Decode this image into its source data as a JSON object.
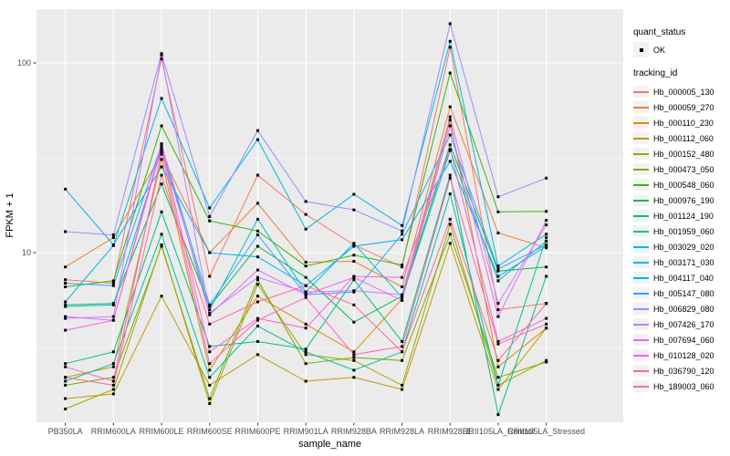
{
  "figure": {
    "x_axis_title": "sample_name",
    "y_axis_title": "FPKM + 1"
  },
  "legend": {
    "quant_status_title": "quant_status",
    "ok_label": "OK",
    "tracking_id_title": "tracking_id"
  },
  "colors": {
    "panel_background": "#EBEBEB",
    "gridline": "#FFFFFF",
    "axis_text": "#4D4D4D",
    "tick_mark": "#333333",
    "point": "#000000",
    "legend_key_background": "#F2F2F2"
  },
  "chart_data": {
    "type": "line",
    "title": "",
    "xlabel": "sample_name",
    "ylabel": "FPKM + 1",
    "y_scale": "log10",
    "ylim": [
      1.27,
      192
    ],
    "y_ticks": [
      {
        "value": 100,
        "label": "100"
      },
      {
        "value": 10,
        "label": "10"
      }
    ],
    "y_minor_ticks": [
      31.62,
      3.162
    ],
    "grid": true,
    "legend_position": "right",
    "point_marker": "black square (quant_status OK)",
    "categories": [
      "PB350LA",
      "RRIM600LA",
      "RRIM600LE",
      "RRIM600SE",
      "RRIM600PE",
      "RRIM901LA",
      "RRIM928BA",
      "RRIM928LA",
      "RRIM928LE",
      "RRII105LA_Control",
      "RRII105LA_Stressed"
    ],
    "series": [
      {
        "name": "Hb_000005_130",
        "color": "#F8766D",
        "values": [
          7.2,
          6.9,
          105,
          7.5,
          25.6,
          15.9,
          11,
          8.4,
          121,
          5,
          5.4
        ]
      },
      {
        "name": "Hb_000059_270",
        "color": "#EA8331",
        "values": [
          8.4,
          12,
          33,
          10,
          18.2,
          8.9,
          9,
          6.6,
          58.7,
          12.7,
          10.6
        ]
      },
      {
        "name": "Hb_000110_230",
        "color": "#D89000",
        "values": [
          2.2,
          2.5,
          31,
          2.4,
          5.9,
          4.2,
          3,
          5.7,
          50,
          2.5,
          4
        ]
      },
      {
        "name": "Hb_000112_060",
        "color": "#C09B00",
        "values": [
          1.7,
          1.8,
          5.9,
          2,
          2.9,
          2.1,
          2.2,
          1.9,
          11.2,
          1.9,
          4
        ]
      },
      {
        "name": "Hb_000152_480",
        "color": "#A3A500",
        "values": [
          1.5,
          1.9,
          11,
          1.6,
          6.8,
          2.9,
          2.7,
          2,
          14.1,
          2,
          2.7
        ]
      },
      {
        "name": "Hb_000473_050",
        "color": "#7CAE00",
        "values": [
          2,
          2.2,
          10.8,
          1.7,
          7.2,
          2.6,
          2.8,
          2.7,
          12.5,
          2.2,
          2.65
        ]
      },
      {
        "name": "Hb_000548_060",
        "color": "#39B600",
        "values": [
          6.6,
          7.1,
          46.6,
          14.7,
          13,
          8.5,
          9.7,
          8.6,
          88.5,
          16.4,
          16.5
        ]
      },
      {
        "name": "Hb_000976_190",
        "color": "#00BB4E",
        "values": [
          5.3,
          5.4,
          23,
          5.2,
          10.8,
          7.4,
          4.3,
          5.9,
          37,
          8,
          8.4
        ]
      },
      {
        "name": "Hb_001124_190",
        "color": "#00BF7D",
        "values": [
          2.6,
          3,
          16.4,
          3.2,
          3.4,
          3.1,
          7.2,
          3.4,
          25.6,
          1.4,
          7.5
        ]
      },
      {
        "name": "Hb_001959_060",
        "color": "#00C1A3",
        "values": [
          2.1,
          2.6,
          12.5,
          2.2,
          4.1,
          3,
          2.4,
          3,
          20.4,
          2,
          12
        ]
      },
      {
        "name": "Hb_003029_020",
        "color": "#00BFC4",
        "values": [
          5.2,
          5.3,
          35,
          5,
          15,
          6.2,
          11.2,
          5.8,
          34.5,
          7.1,
          11.5
        ]
      },
      {
        "name": "Hb_003171_030",
        "color": "#00BAE0",
        "values": [
          5.5,
          10.9,
          65,
          17.2,
          39.4,
          13.3,
          20.3,
          13.9,
          130,
          8.5,
          12.5
        ]
      },
      {
        "name": "Hb_004117_040",
        "color": "#00B0F6",
        "values": [
          21.6,
          11,
          28.3,
          10,
          9.5,
          6.7,
          10.8,
          11.7,
          30.3,
          7.5,
          10.8
        ]
      },
      {
        "name": "Hb_005147_080",
        "color": "#35A2FF",
        "values": [
          6.9,
          6.7,
          37,
          5.3,
          12.4,
          6,
          6.2,
          12.5,
          41.7,
          8.2,
          11
        ]
      },
      {
        "name": "Hb_006829_080",
        "color": "#9590FF",
        "values": [
          12.9,
          12.4,
          112,
          15.5,
          44,
          18.6,
          16.8,
          13,
          161,
          19.7,
          24.7
        ]
      },
      {
        "name": "Hb_007426_170",
        "color": "#C77CFF",
        "values": [
          4.5,
          4.6,
          110,
          4.8,
          7.4,
          6.2,
          6.3,
          6,
          52,
          5.4,
          14
        ]
      },
      {
        "name": "Hb_007694_060",
        "color": "#E76BF3",
        "values": [
          4.6,
          4.4,
          37.5,
          4.7,
          8.1,
          6,
          7.4,
          5.6,
          46.6,
          4.6,
          14.8
        ]
      },
      {
        "name": "Hb_010128_020",
        "color": "#FA62DB",
        "values": [
          3.9,
          4.4,
          36,
          3,
          4.5,
          4,
          7.5,
          7.4,
          35,
          3.4,
          4.5
        ]
      },
      {
        "name": "Hb_036790_120",
        "color": "#FF62BC",
        "values": [
          2.5,
          2.1,
          34,
          2.6,
          4.4,
          5.8,
          2.9,
          3.2,
          24.7,
          3.3,
          4.2
        ]
      },
      {
        "name": "Hb_189003_060",
        "color": "#FF6A98",
        "values": [
          2.2,
          2,
          25.6,
          4.2,
          5.5,
          6.7,
          5.3,
          3,
          15,
          2.7,
          5.4
        ]
      }
    ]
  }
}
